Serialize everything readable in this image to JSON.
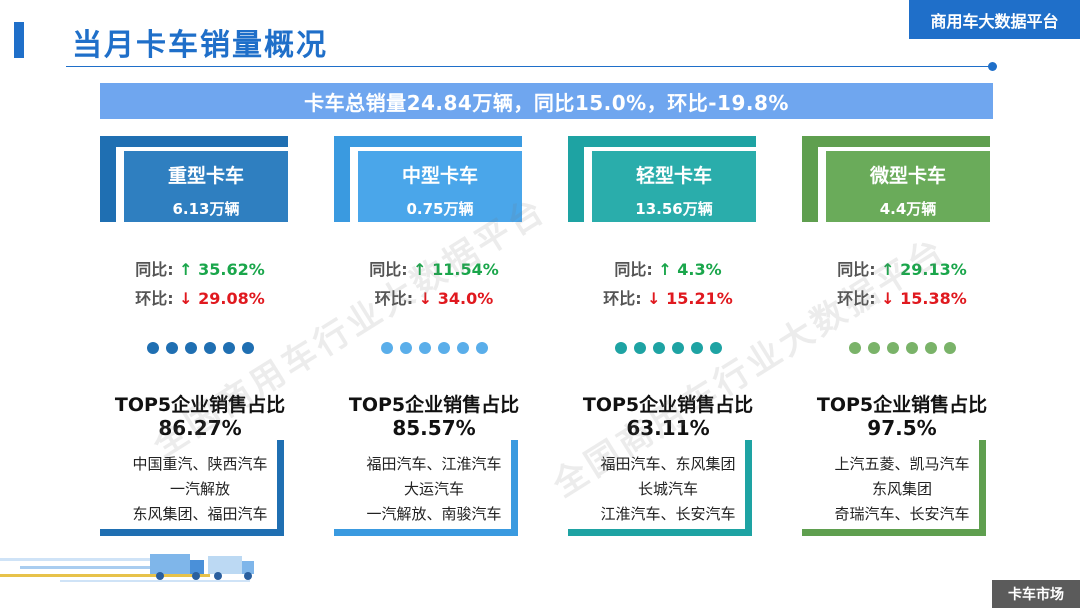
{
  "header": {
    "title": "当月卡车销量概况",
    "platform": "商用车大数据平台"
  },
  "summary": "卡车总销量24.84万辆，同比15.0%，环比-19.8%",
  "labels": {
    "yoy": "同比:",
    "mom": "环比:",
    "top5": "TOP5企业销售占比"
  },
  "categories": [
    {
      "name": "重型卡车",
      "volume": "6.13万辆",
      "yoy": "↑ 35.62%",
      "mom": "↓ 29.08%",
      "top5_pct": "86.27%",
      "companies": [
        "中国重汽、陕西汽车",
        "一汽解放",
        "东风集团、福田汽车"
      ],
      "color_light": "#2f86c8",
      "color_dark": "#1f6fb2"
    },
    {
      "name": "中型卡车",
      "volume": "0.75万辆",
      "yoy": "↑ 11.54%",
      "mom": "↓ 34.0%",
      "top5_pct": "85.57%",
      "companies": [
        "福田汽车、江淮汽车",
        "大运汽车",
        "一汽解放、南骏汽车"
      ],
      "color_light": "#5aaeea",
      "color_dark": "#3a9ae0"
    },
    {
      "name": "轻型卡车",
      "volume": "13.56万辆",
      "yoy": "↑ 4.3%",
      "mom": "↓ 15.21%",
      "top5_pct": "63.11%",
      "companies": [
        "福田汽车、东风集团",
        "长城汽车",
        "江淮汽车、长安汽车"
      ],
      "color_light": "#3fb5b2",
      "color_dark": "#1ea3a3"
    },
    {
      "name": "微型卡车",
      "volume": "4.4万辆",
      "yoy": "↑ 29.13%",
      "mom": "↓ 15.38%",
      "top5_pct": "97.5%",
      "companies": [
        "上汽五菱、凯马汽车",
        "东风集团",
        "奇瑞汽车、长安汽车"
      ],
      "color_light": "#7ab369",
      "color_dark": "#5f9f4f"
    }
  ],
  "watermark": "全国商用车行业大数据平台",
  "footer": "卡车市场"
}
